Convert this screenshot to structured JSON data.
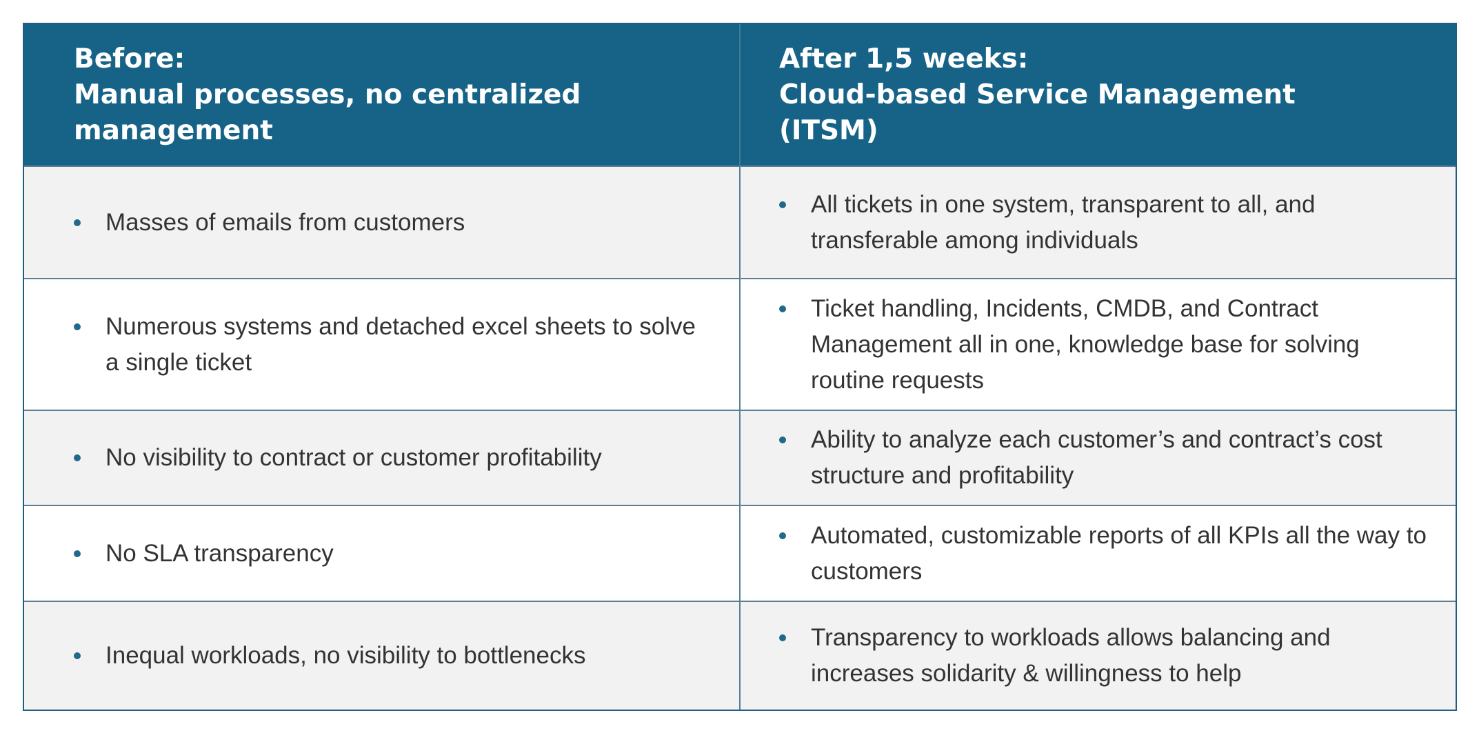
{
  "header": {
    "left": {
      "line1": "Before:",
      "line2": "Manual processes, no centralized",
      "line3": "management"
    },
    "right": {
      "line1": "After 1,5 weeks:",
      "line2": "Cloud-based Service Management",
      "line3": "(ITSM)"
    }
  },
  "rows": [
    {
      "before": "Masses of emails from customers",
      "after": "All tickets in one system, transparent to all, and transferable among individuals"
    },
    {
      "before": "Numerous systems and detached excel sheets to solve a single ticket",
      "after": "Ticket handling, Incidents, CMDB, and Contract Management all in one, knowledge base for solving routine requests"
    },
    {
      "before": "No visibility to contract or customer profitability",
      "after": "Ability to analyze each customer’s and contract’s cost structure and profitability"
    },
    {
      "before": "No SLA transparency",
      "after": "Automated, customizable reports of all KPIs all the way to customers"
    },
    {
      "before": "Inequal workloads, no visibility to bottlenecks",
      "after": "Transparency to workloads allows balancing and increases solidarity & willingness to help"
    }
  ],
  "colors": {
    "header_bg": "#176387",
    "shaded_row_bg": "#f2f2f3",
    "bullet": "#1f6a8a",
    "border": "#5b7f97"
  }
}
